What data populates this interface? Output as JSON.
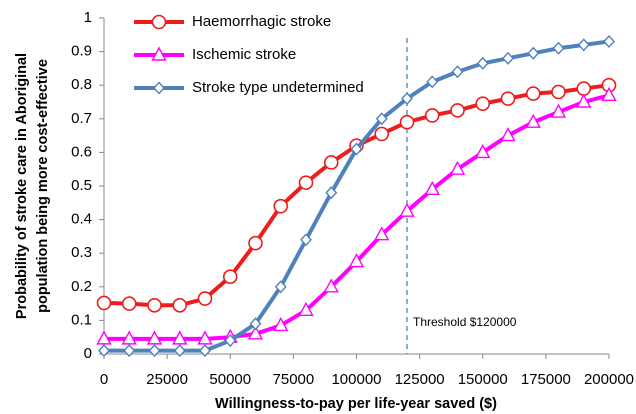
{
  "chart_data": {
    "type": "line",
    "x_label": "Willingness-to-pay per life-year saved ($)",
    "y_label": [
      "Probability of stroke care in Aboriginal",
      "population being more cost-effective"
    ],
    "x": [
      0,
      10000,
      20000,
      30000,
      40000,
      50000,
      60000,
      70000,
      80000,
      90000,
      100000,
      110000,
      120000,
      130000,
      140000,
      150000,
      160000,
      170000,
      180000,
      190000,
      200000
    ],
    "series": [
      {
        "name": "Haemorrhagic stroke",
        "color": "#ee1c1c",
        "marker": "circle",
        "values": [
          0.152,
          0.15,
          0.145,
          0.145,
          0.165,
          0.23,
          0.33,
          0.44,
          0.51,
          0.57,
          0.62,
          0.655,
          0.69,
          0.71,
          0.725,
          0.745,
          0.76,
          0.775,
          0.78,
          0.79,
          0.8
        ]
      },
      {
        "name": "Ischemic stroke",
        "color": "#ff00ff",
        "marker": "triangle",
        "values": [
          0.045,
          0.045,
          0.045,
          0.045,
          0.045,
          0.05,
          0.06,
          0.085,
          0.13,
          0.2,
          0.275,
          0.355,
          0.425,
          0.49,
          0.55,
          0.6,
          0.65,
          0.69,
          0.72,
          0.75,
          0.77
        ]
      },
      {
        "name": "Stroke type undetermined",
        "color": "#4f81bd",
        "marker": "diamond",
        "values": [
          0.01,
          0.01,
          0.01,
          0.01,
          0.01,
          0.04,
          0.09,
          0.2,
          0.34,
          0.48,
          0.61,
          0.7,
          0.76,
          0.81,
          0.84,
          0.865,
          0.88,
          0.895,
          0.91,
          0.92,
          0.93
        ]
      }
    ],
    "threshold": {
      "value": 120000,
      "label": "Threshold $120000",
      "color": "#4f81bd"
    },
    "xlim": [
      0,
      200000
    ],
    "xticks": [
      0,
      25000,
      50000,
      75000,
      100000,
      125000,
      150000,
      175000,
      200000
    ],
    "ylim": [
      0,
      1
    ],
    "yticks": [
      0,
      0.1,
      0.2,
      0.3,
      0.4,
      0.5,
      0.6,
      0.7,
      0.8,
      0.9,
      1
    ],
    "grid": false,
    "legend": "upper-left"
  }
}
